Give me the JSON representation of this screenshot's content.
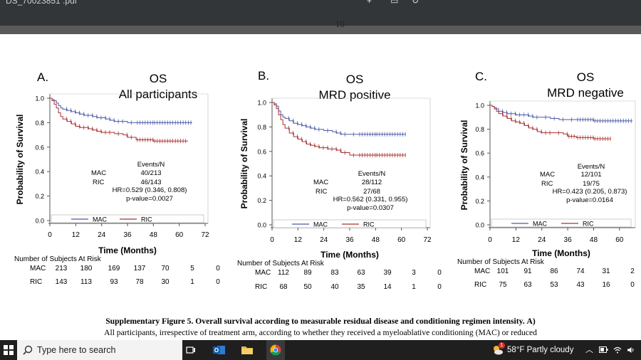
{
  "viewer": {
    "title": "DS_70023851 .pdf",
    "page_field": "",
    "zoom_field": "",
    "page_number": "10"
  },
  "chart_data": [
    {
      "type": "line",
      "panel_label": "A.",
      "title": "OS",
      "subtitle": "All participants",
      "xlabel": "Time (Months)",
      "ylabel": "Probability of Survival",
      "xticks": [
        0,
        12,
        24,
        36,
        48,
        60,
        72
      ],
      "yticks": [
        0.0,
        0.2,
        0.4,
        0.6,
        0.8,
        1.0
      ],
      "ytick_labels": [
        "0.0",
        "0.2",
        "0.4",
        "0.6",
        "0.8",
        "1.0"
      ],
      "xlim": [
        0,
        72
      ],
      "ylim": [
        0,
        1.0
      ],
      "legend": [
        "MAC",
        "RIC"
      ],
      "legend_position": "bottom",
      "series": [
        {
          "name": "MAC",
          "color": "#4a5aa8",
          "x": [
            0,
            1,
            2,
            3,
            4,
            5,
            6,
            8,
            10,
            12,
            14,
            16,
            18,
            20,
            22,
            24,
            26,
            28,
            30,
            32,
            36,
            40,
            48,
            60,
            66
          ],
          "y": [
            1.0,
            0.99,
            0.98,
            0.96,
            0.94,
            0.92,
            0.91,
            0.9,
            0.89,
            0.88,
            0.87,
            0.86,
            0.86,
            0.85,
            0.84,
            0.84,
            0.83,
            0.82,
            0.81,
            0.81,
            0.8,
            0.8,
            0.8,
            0.8,
            0.8
          ]
        },
        {
          "name": "RIC",
          "color": "#a83232",
          "x": [
            0,
            1,
            2,
            3,
            4,
            5,
            6,
            8,
            10,
            12,
            14,
            16,
            18,
            20,
            22,
            24,
            26,
            30,
            34,
            36,
            40,
            48,
            60,
            64
          ],
          "y": [
            1.0,
            0.98,
            0.95,
            0.92,
            0.88,
            0.85,
            0.83,
            0.81,
            0.79,
            0.77,
            0.76,
            0.76,
            0.75,
            0.74,
            0.73,
            0.72,
            0.72,
            0.71,
            0.7,
            0.68,
            0.66,
            0.65,
            0.65,
            0.65
          ]
        }
      ],
      "stats": {
        "events_header": "Events/N",
        "mac_label": "MAC",
        "mac_events": "40/213",
        "ric_label": "RIC",
        "ric_events": "46/143",
        "hr": "HR=0.529 (0.346, 0.808)",
        "p": "p-value=0.0027"
      },
      "risk_table": {
        "title": "Number of Subjects At Risk",
        "rows": [
          {
            "label": "MAC",
            "values": [
              "213",
              "180",
              "169",
              "137",
              "70",
              "5",
              "0"
            ]
          },
          {
            "label": "RIC",
            "values": [
              "143",
              "113",
              "93",
              "78",
              "30",
              "1",
              "0"
            ]
          }
        ]
      }
    },
    {
      "type": "line",
      "panel_label": "B.",
      "title": "OS",
      "subtitle": "MRD positive",
      "xlabel": "Time (Months)",
      "ylabel": "Probability of Survival",
      "xticks": [
        0,
        12,
        24,
        36,
        48,
        60,
        72
      ],
      "yticks": [
        0.0,
        0.2,
        0.4,
        0.6,
        0.8,
        1.0
      ],
      "ytick_labels": [
        "0.0",
        "0.2",
        "0.4",
        "0.6",
        "0.8",
        "1.0"
      ],
      "xlim": [
        0,
        72
      ],
      "ylim": [
        0,
        1.0
      ],
      "legend": [
        "MAC",
        "RIC"
      ],
      "legend_position": "bottom",
      "series": [
        {
          "name": "MAC",
          "color": "#4a5aa8",
          "x": [
            0,
            1,
            2,
            3,
            4,
            5,
            6,
            8,
            10,
            12,
            14,
            16,
            18,
            20,
            24,
            28,
            30,
            32,
            36,
            40,
            48,
            60,
            62
          ],
          "y": [
            1.0,
            0.99,
            0.97,
            0.93,
            0.9,
            0.88,
            0.87,
            0.85,
            0.83,
            0.82,
            0.81,
            0.8,
            0.79,
            0.78,
            0.77,
            0.76,
            0.75,
            0.74,
            0.74,
            0.74,
            0.74,
            0.74,
            0.74
          ]
        },
        {
          "name": "RIC",
          "color": "#a83232",
          "x": [
            0,
            1,
            2,
            3,
            4,
            5,
            6,
            8,
            10,
            12,
            14,
            16,
            18,
            20,
            22,
            24,
            26,
            28,
            30,
            32,
            36,
            40,
            48,
            60,
            62
          ],
          "y": [
            1.0,
            0.98,
            0.95,
            0.9,
            0.86,
            0.82,
            0.79,
            0.75,
            0.72,
            0.7,
            0.68,
            0.66,
            0.65,
            0.64,
            0.63,
            0.63,
            0.62,
            0.62,
            0.61,
            0.59,
            0.57,
            0.57,
            0.57,
            0.57,
            0.57
          ]
        }
      ],
      "stats": {
        "events_header": "Events/N",
        "mac_label": "MAC",
        "mac_events": "28/112",
        "ric_label": "RIC",
        "ric_events": "27/68",
        "hr": "HR=0.562 (0.331, 0.955)",
        "p": "p-value=0.0307"
      },
      "risk_table": {
        "title": "Number of Subjects At Risk",
        "rows": [
          {
            "label": "MAC",
            "values": [
              "112",
              "89",
              "83",
              "63",
              "39",
              "3",
              "0"
            ]
          },
          {
            "label": "RIC",
            "values": [
              "68",
              "50",
              "40",
              "35",
              "14",
              "1",
              "0"
            ]
          }
        ]
      }
    },
    {
      "type": "line",
      "panel_label": "C.",
      "title": "OS",
      "subtitle": "MRD negative",
      "xlabel": "Time (Months)",
      "ylabel": "Probability of Survival",
      "xticks": [
        0,
        12,
        24,
        36,
        48,
        60
      ],
      "yticks": [
        0.0,
        0.2,
        0.4,
        0.6,
        0.8,
        1.0
      ],
      "ytick_labels": [
        "0.0",
        "0.2",
        "0.4",
        "0.6",
        "0.8",
        "1.0"
      ],
      "xlim": [
        0,
        66
      ],
      "ylim": [
        0,
        1.0
      ],
      "legend": [
        "MAC",
        "RIC"
      ],
      "legend_position": "bottom",
      "series": [
        {
          "name": "MAC",
          "color": "#4a5aa8",
          "x": [
            0,
            1,
            2,
            3,
            4,
            6,
            8,
            10,
            12,
            14,
            16,
            18,
            20,
            24,
            28,
            32,
            36,
            40,
            48,
            60,
            66
          ],
          "y": [
            1.0,
            0.99,
            0.98,
            0.97,
            0.95,
            0.94,
            0.93,
            0.93,
            0.92,
            0.92,
            0.92,
            0.91,
            0.9,
            0.9,
            0.89,
            0.88,
            0.88,
            0.88,
            0.87,
            0.87,
            0.87
          ]
        },
        {
          "name": "RIC",
          "color": "#a83232",
          "x": [
            0,
            1,
            2,
            3,
            4,
            6,
            8,
            10,
            12,
            14,
            16,
            18,
            20,
            22,
            24,
            26,
            30,
            34,
            36,
            40,
            48,
            56
          ],
          "y": [
            1.0,
            0.99,
            0.97,
            0.95,
            0.93,
            0.91,
            0.89,
            0.87,
            0.86,
            0.85,
            0.83,
            0.81,
            0.8,
            0.78,
            0.77,
            0.77,
            0.77,
            0.76,
            0.74,
            0.73,
            0.72,
            0.72
          ]
        }
      ],
      "stats": {
        "events_header": "Events/N",
        "mac_label": "MAC",
        "mac_events": "12/101",
        "ric_label": "RIC",
        "ric_events": "19/75",
        "hr": "HR=0.423 (0.205, 0.873)",
        "p": "p-value=0.0164"
      },
      "risk_table": {
        "title": "Number of Subjects At Risk",
        "rows": [
          {
            "label": "MAC",
            "values": [
              "101",
              "91",
              "86",
              "74",
              "31",
              "2"
            ]
          },
          {
            "label": "RIC",
            "values": [
              "75",
              "63",
              "53",
              "43",
              "16",
              "0"
            ]
          }
        ]
      }
    }
  ],
  "caption": {
    "bold": "Supplementary Figure 5. Overall survival according to measurable residual disease and conditioning regimen intensity.",
    "bold_tail": "A)",
    "line2": "All participants, irrespective of treatment arm, according to whether they received a myeloablative conditioning (MAC) or reduced"
  },
  "taskbar": {
    "search_placeholder": "Type here to search",
    "weather_badge": "1",
    "weather": "58°F  Partly cloudy",
    "apps": [
      "task-view-icon",
      "outlook-icon",
      "file-explorer-icon",
      "chrome-icon"
    ]
  }
}
